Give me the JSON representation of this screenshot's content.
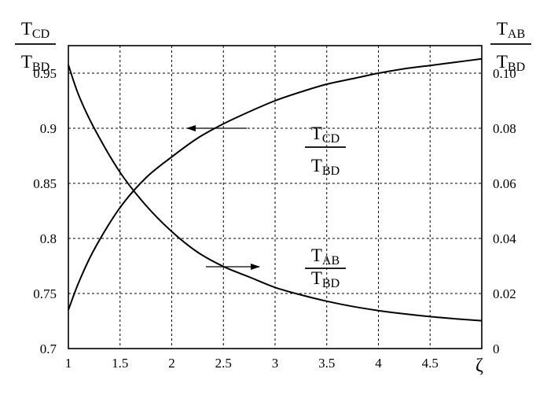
{
  "chart_data": {
    "type": "line",
    "grid": true,
    "x_axis": {
      "label": "ζ",
      "range": [
        1,
        5
      ],
      "ticks": [
        "1",
        "1.5",
        "2",
        "2.5",
        "3",
        "3.5",
        "4",
        "4.5"
      ]
    },
    "y_left": {
      "range": [
        0.7,
        0.975
      ],
      "ticks": [
        "0.7",
        "0.75",
        "0.8",
        "0.85",
        "0.9",
        "0.95"
      ],
      "label": {
        "num_main": "T",
        "num_sub": "CD",
        "den_main": "T",
        "den_sub": "BD"
      }
    },
    "y_right": {
      "range": [
        0,
        0.11
      ],
      "ticks": [
        "0",
        "0.02",
        "0.04",
        "0.06",
        "0.08",
        "0.10"
      ],
      "label": {
        "num_main": "T",
        "num_sub": "AB",
        "den_main": "T",
        "den_sub": "BD"
      }
    },
    "series": [
      {
        "label": {
          "num_main": "T",
          "num_sub": "CD",
          "den_main": "T",
          "den_sub": "BD"
        },
        "axis": "left",
        "arrow_direction": "left",
        "x": [
          1,
          1.1,
          1.25,
          1.5,
          1.75,
          2,
          2.25,
          2.5,
          2.75,
          3,
          3.25,
          3.5,
          3.75,
          4,
          4.25,
          4.5,
          4.75,
          5
        ],
        "y": [
          0.735,
          0.76,
          0.79,
          0.828,
          0.855,
          0.874,
          0.891,
          0.904,
          0.915,
          0.925,
          0.933,
          0.94,
          0.945,
          0.95,
          0.954,
          0.957,
          0.96,
          0.963
        ]
      },
      {
        "label": {
          "num_main": "T",
          "num_sub": "AB",
          "den_main": "T",
          "den_sub": "BD"
        },
        "axis": "right",
        "arrow_direction": "right",
        "x": [
          1,
          1.1,
          1.25,
          1.5,
          1.75,
          2,
          2.25,
          2.5,
          2.75,
          3,
          3.25,
          3.5,
          3.75,
          4,
          4.25,
          4.5,
          4.75,
          5
        ],
        "y": [
          0.103,
          0.092,
          0.08,
          0.064,
          0.052,
          0.0425,
          0.035,
          0.0298,
          0.026,
          0.0222,
          0.0195,
          0.0172,
          0.0153,
          0.0138,
          0.0126,
          0.0116,
          0.0108,
          0.0101
        ]
      }
    ]
  }
}
